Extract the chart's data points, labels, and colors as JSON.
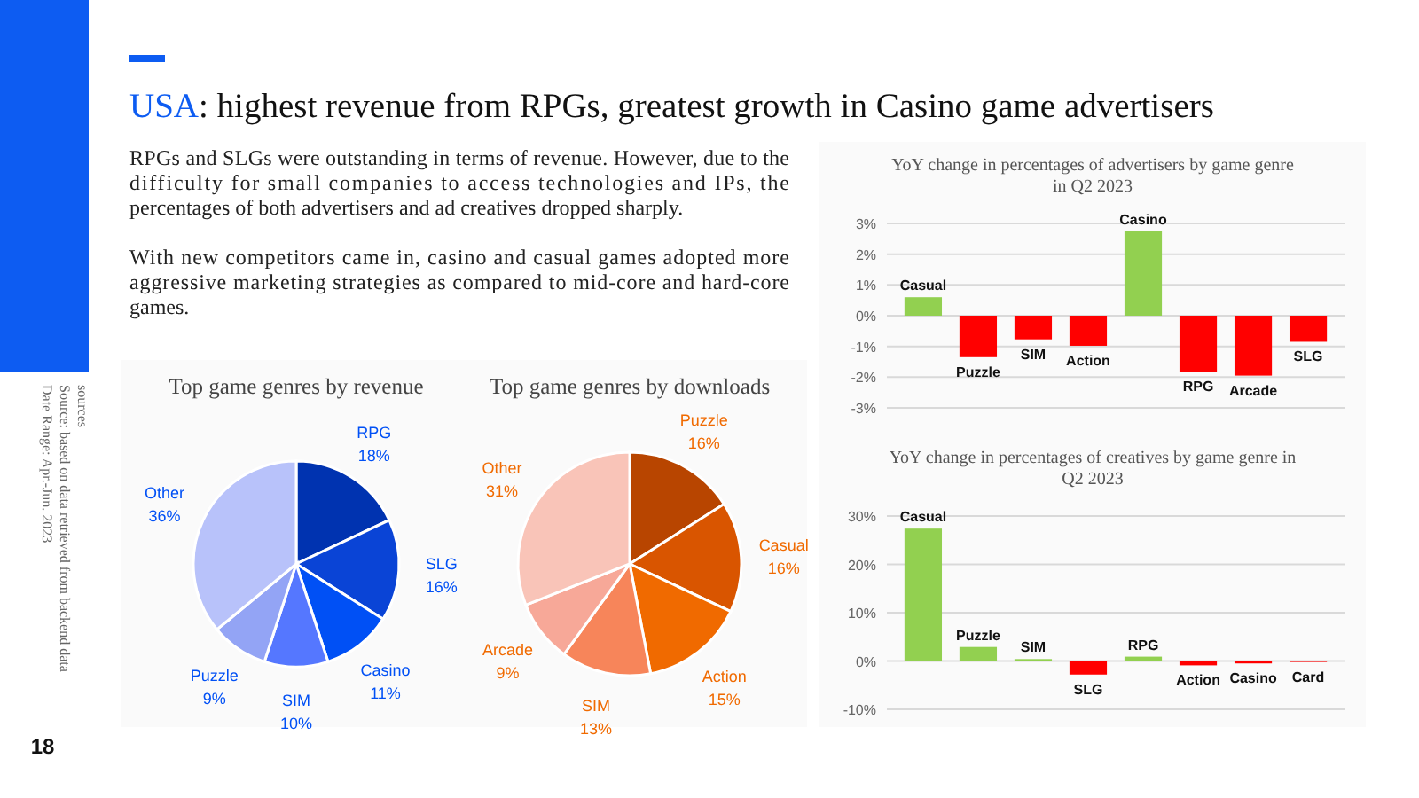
{
  "chart_data": [
    {
      "type": "other",
      "title": "USA: highest revenue from RPGs, greatest growth in Casino game advertisers",
      "annotations": [
        "RPGs and SLGs were outstanding in terms of revenue. However, due to the difficulty for small companies to access technologies and IPs, the percentages of both advertisers and ad creatives dropped sharply.",
        "With new competitors came in, casino and casual games adopted more aggressive marketing strategies as compared to mid-core and hard-core games.",
        "Source: based on data retrieved from backend data sources",
        "Date Range: Apr.-Jun. 2023",
        "18"
      ]
    },
    {
      "type": "pie",
      "title": "Top game genres by revenue",
      "categories": [
        "RPG",
        "SLG",
        "Casino",
        "SIM",
        "Puzzle",
        "Other"
      ],
      "values": [
        18,
        16,
        11,
        10,
        9,
        36
      ],
      "value_labels": [
        "18%",
        "16%",
        "11%",
        "10%",
        "9%",
        "36%"
      ],
      "colors": [
        "#0033b0",
        "#0a44d6",
        "#0050f5",
        "#5577ff",
        "#93a4f5",
        "#b8c2fa"
      ]
    },
    {
      "type": "pie",
      "title": "Top game genres by downloads",
      "categories": [
        "Puzzle",
        "Casual",
        "Action",
        "SIM",
        "Arcade",
        "Other"
      ],
      "values": [
        16,
        16,
        15,
        13,
        9,
        31
      ],
      "value_labels": [
        "16%",
        "16%",
        "15%",
        "13%",
        "9%",
        "31%"
      ],
      "colors": [
        "#b84500",
        "#d95500",
        "#f06a00",
        "#f7855a",
        "#f7a898",
        "#f9c4b8"
      ]
    },
    {
      "type": "bar",
      "title": "YoY change in percentages of advertisers by game genre in Q2 2023",
      "categories": [
        "Casual",
        "Puzzle",
        "SIM",
        "Action",
        "Casino",
        "RPG",
        "Arcade",
        "SLG"
      ],
      "values": [
        0.6,
        -1.35,
        -0.77,
        -0.98,
        2.75,
        -1.83,
        -1.95,
        -0.85
      ],
      "colors": [
        "#92d050",
        "#ff0000",
        "#ff0000",
        "#ff0000",
        "#92d050",
        "#ff0000",
        "#ff0000",
        "#ff0000"
      ],
      "ylim": [
        -3,
        3
      ],
      "yticks": [
        {
          "value": -3,
          "label": "-3%"
        },
        {
          "value": -2,
          "label": "-2%"
        },
        {
          "value": -1,
          "label": "-1%"
        },
        {
          "value": 0,
          "label": "0%"
        },
        {
          "value": 1,
          "label": "1%"
        },
        {
          "value": 2,
          "label": "2%"
        },
        {
          "value": 3,
          "label": "3%"
        }
      ],
      "grid": "y"
    },
    {
      "type": "bar",
      "title": "YoY change in percentages of creatives by game genre in Q2 2023",
      "categories": [
        "Casual",
        "Puzzle",
        "SIM",
        "SLG",
        "RPG",
        "Action",
        "Casino",
        "Card"
      ],
      "values": [
        27.4,
        2.9,
        0.4,
        -2.8,
        0.9,
        -0.9,
        -0.5,
        -0.2
      ],
      "colors": [
        "#92d050",
        "#92d050",
        "#92d050",
        "#ff0000",
        "#92d050",
        "#ff0000",
        "#ff0000",
        "#ff0000"
      ],
      "ylim": [
        -10,
        30
      ],
      "yticks": [
        {
          "value": -10,
          "label": "-10%"
        },
        {
          "value": 0,
          "label": "0%"
        },
        {
          "value": 10,
          "label": "10%"
        },
        {
          "value": 20,
          "label": "20%"
        },
        {
          "value": 30,
          "label": "30%"
        }
      ],
      "grid": "y"
    }
  ]
}
